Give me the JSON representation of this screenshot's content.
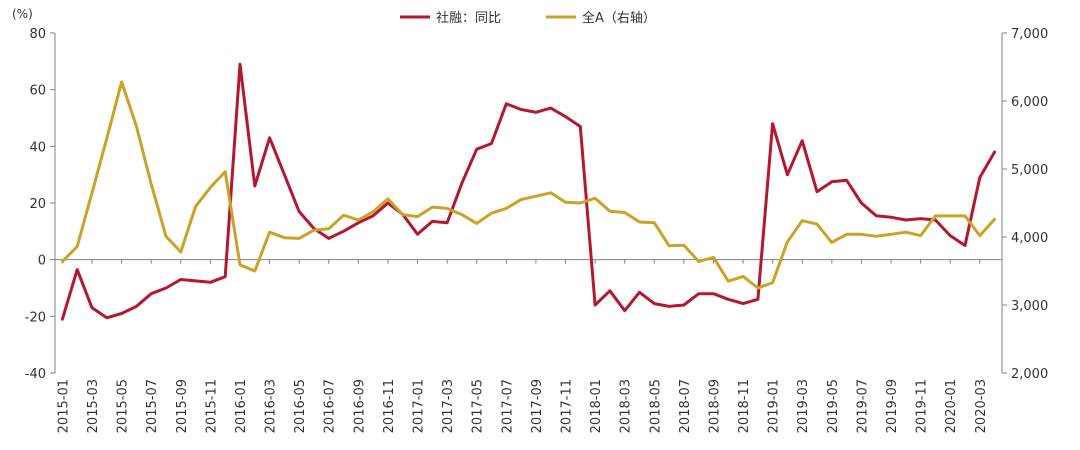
{
  "chart_data": {
    "type": "line",
    "unit_left": "(%)",
    "x": [
      "2015-01",
      "2015-02",
      "2015-03",
      "2015-04",
      "2015-05",
      "2015-06",
      "2015-07",
      "2015-08",
      "2015-09",
      "2015-10",
      "2015-11",
      "2015-12",
      "2016-01",
      "2016-02",
      "2016-03",
      "2016-04",
      "2016-05",
      "2016-06",
      "2016-07",
      "2016-08",
      "2016-09",
      "2016-10",
      "2016-11",
      "2016-12",
      "2017-01",
      "2017-02",
      "2017-03",
      "2017-04",
      "2017-05",
      "2017-06",
      "2017-07",
      "2017-08",
      "2017-09",
      "2017-10",
      "2017-11",
      "2017-12",
      "2018-01",
      "2018-02",
      "2018-03",
      "2018-04",
      "2018-05",
      "2018-06",
      "2018-07",
      "2018-08",
      "2018-09",
      "2018-10",
      "2018-11",
      "2018-12",
      "2019-01",
      "2019-02",
      "2019-03",
      "2019-04",
      "2019-05",
      "2019-06",
      "2019-07",
      "2019-08",
      "2019-09",
      "2019-10",
      "2019-11",
      "2019-12",
      "2020-01",
      "2020-02",
      "2020-03",
      "2020-04"
    ],
    "x_tick_labels": [
      "2015-01",
      "2015-03",
      "2015-05",
      "2015-07",
      "2015-09",
      "2015-11",
      "2016-01",
      "2016-03",
      "2016-05",
      "2016-07",
      "2016-09",
      "2016-11",
      "2017-01",
      "2017-03",
      "2017-05",
      "2017-07",
      "2017-09",
      "2017-11",
      "2018-01",
      "2018-03",
      "2018-05",
      "2018-07",
      "2018-09",
      "2018-11",
      "2019-01",
      "2019-03",
      "2019-05",
      "2019-07",
      "2019-09",
      "2019-11",
      "2020-01",
      "2020-03"
    ],
    "y_left": {
      "min": -40,
      "max": 80,
      "ticks": [
        -40,
        -20,
        0,
        20,
        40,
        60,
        80
      ],
      "tick_labels": [
        "-40",
        "-20",
        "0",
        "20",
        "40",
        "60",
        "80"
      ]
    },
    "y_right": {
      "min": 2000,
      "max": 7000,
      "ticks": [
        2000,
        3000,
        4000,
        5000,
        6000,
        7000
      ],
      "tick_labels": [
        "2,000",
        "3,000",
        "4,000",
        "5,000",
        "6,000",
        "7,000"
      ]
    },
    "grid": false,
    "legend_position": "top-center",
    "series": [
      {
        "name": "社融：同比",
        "axis": "left",
        "color": "#b5172f",
        "values": [
          -21,
          -3.5,
          -17,
          -20.5,
          -19,
          -16.5,
          -12,
          -10,
          -7,
          -7.5,
          -8,
          -6,
          69,
          26,
          43,
          30,
          17,
          11,
          7.5,
          10,
          13,
          15.5,
          20,
          16,
          9,
          13.5,
          13,
          27,
          39,
          41,
          55,
          53,
          52,
          53.5,
          50.5,
          47,
          -16,
          -11,
          -18,
          -11.5,
          -15.5,
          -16.5,
          -16,
          -12,
          -12,
          -14,
          -15.5,
          -14,
          48,
          30,
          42,
          24,
          27.5,
          28,
          20,
          15.5,
          15,
          14,
          14.5,
          14,
          8.5,
          5,
          29,
          38
        ]
      },
      {
        "name": "全A（右轴）",
        "axis": "right",
        "color": "#c9a227",
        "values": [
          3640,
          3860,
          4650,
          5450,
          6280,
          5630,
          4780,
          4010,
          3780,
          4450,
          4730,
          4960,
          3590,
          3500,
          4070,
          3990,
          3980,
          4100,
          4120,
          4320,
          4250,
          4370,
          4560,
          4330,
          4300,
          4440,
          4420,
          4330,
          4200,
          4350,
          4420,
          4550,
          4600,
          4650,
          4510,
          4500,
          4570,
          4380,
          4360,
          4220,
          4210,
          3870,
          3880,
          3640,
          3700,
          3350,
          3420,
          3250,
          3330,
          3930,
          4240,
          4190,
          3920,
          4040,
          4040,
          4010,
          4040,
          4070,
          4020,
          4310,
          4310,
          4310,
          4020,
          4260
        ]
      }
    ]
  }
}
